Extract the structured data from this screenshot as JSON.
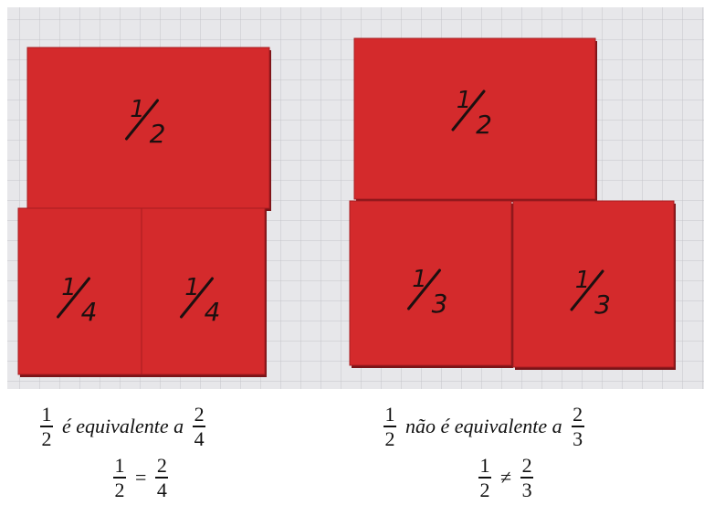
{
  "photo": {
    "left_set": {
      "pieces": [
        {
          "numerator": "1",
          "denominator": "2"
        },
        {
          "numerator": "1",
          "denominator": "4"
        },
        {
          "numerator": "1",
          "denominator": "4"
        }
      ]
    },
    "right_set": {
      "pieces": [
        {
          "numerator": "1",
          "denominator": "2"
        },
        {
          "numerator": "1",
          "denominator": "3"
        },
        {
          "numerator": "1",
          "denominator": "3"
        }
      ]
    }
  },
  "captions": [
    {
      "line1": {
        "fraction_a": {
          "numerator": "1",
          "denominator": "2"
        },
        "text": "é equivalente a",
        "fraction_b": {
          "numerator": "2",
          "denominator": "4"
        }
      },
      "line2": {
        "fraction_a": {
          "numerator": "1",
          "denominator": "2"
        },
        "relation": "=",
        "fraction_b": {
          "numerator": "2",
          "denominator": "4"
        }
      }
    },
    {
      "line1": {
        "fraction_a": {
          "numerator": "1",
          "denominator": "2"
        },
        "text": "não é equivalente a",
        "fraction_b": {
          "numerator": "2",
          "denominator": "3"
        }
      },
      "line2": {
        "fraction_a": {
          "numerator": "1",
          "denominator": "2"
        },
        "relation": "≠",
        "fraction_b": {
          "numerator": "2",
          "denominator": "3"
        }
      }
    }
  ]
}
